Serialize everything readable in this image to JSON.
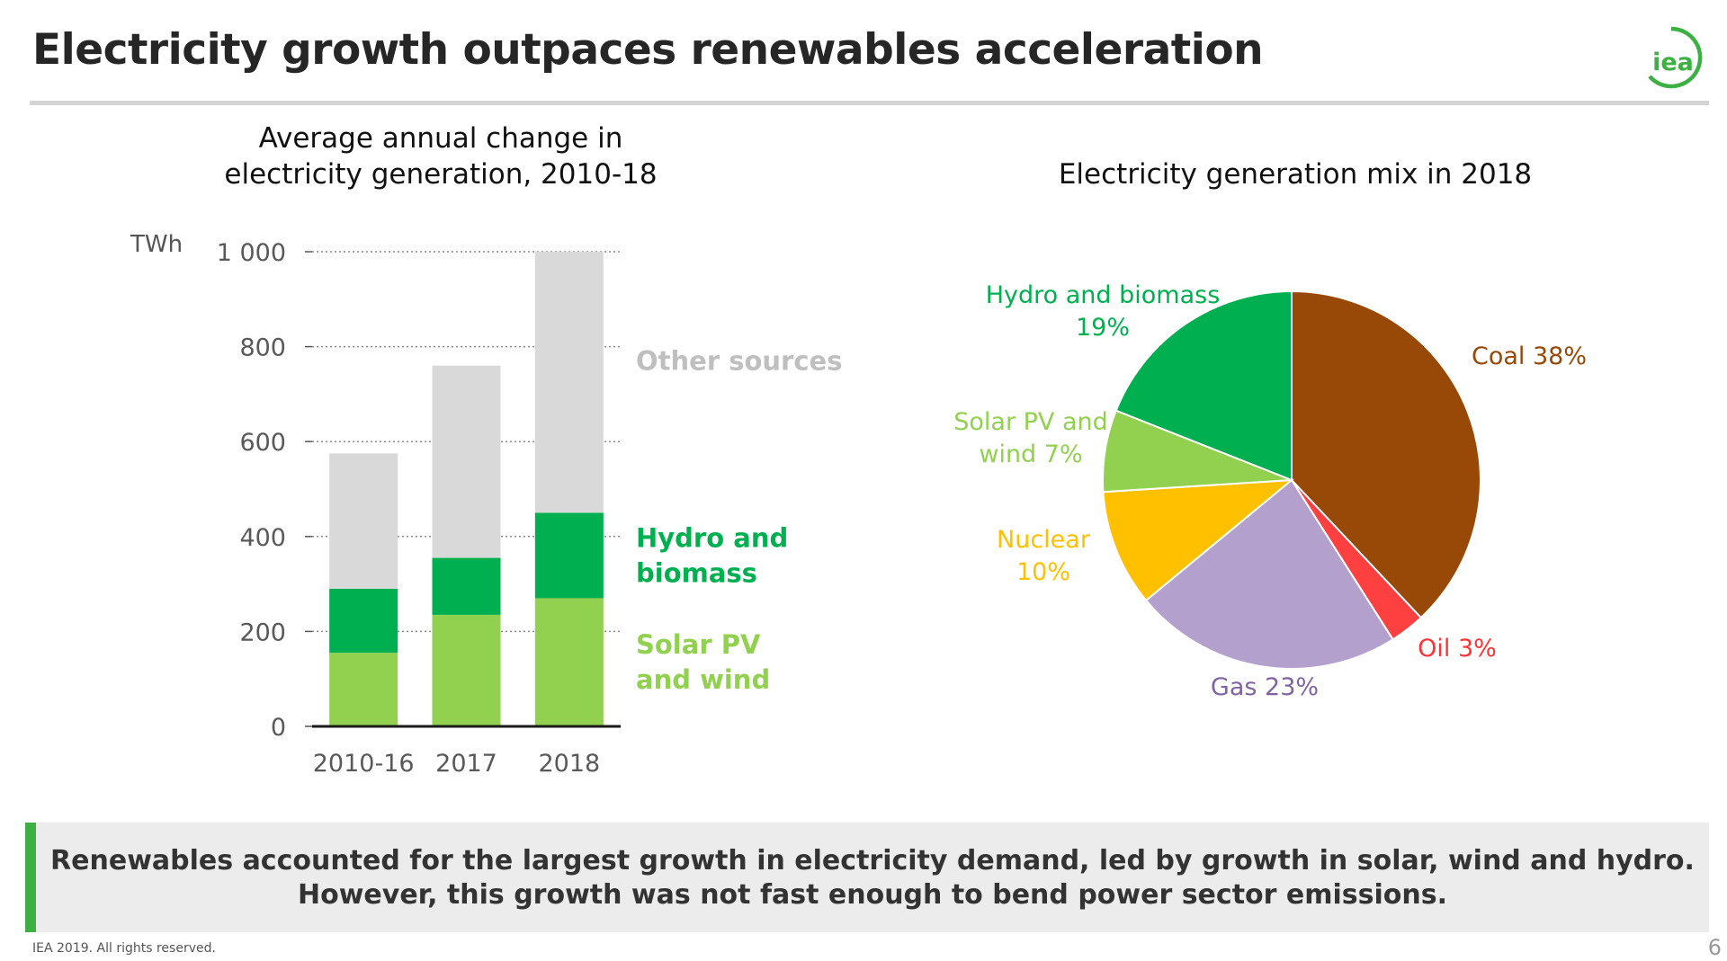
{
  "header": {
    "title": "Electricity growth outpaces renewables acceleration",
    "logo_text": "iea",
    "colors": {
      "logo": "#3cb043",
      "rule": "#d4d4d4"
    }
  },
  "callout": {
    "line1": "Renewables accounted for the largest growth in electricity demand, led by growth in solar, wind and hydro.",
    "line2": "However, this growth was not fast enough to bend power sector emissions."
  },
  "footer": {
    "copyright": "IEA 2019. All rights reserved.",
    "page_number": "6"
  },
  "chart_data": [
    {
      "type": "bar",
      "stacked": true,
      "title": "Average annual change in electricity generation, 2010-18",
      "title_lines": [
        "Average annual change in",
        "electricity generation, 2010-18"
      ],
      "ylabel": "TWh",
      "ylim": [
        0,
        1000
      ],
      "yticks": [
        0,
        200,
        400,
        600,
        800,
        1000
      ],
      "ytick_labels": [
        "0",
        "200",
        "400",
        "600",
        "800",
        "1 000"
      ],
      "grid": true,
      "categories": [
        "2010-16",
        "2017",
        "2018"
      ],
      "series": [
        {
          "name": "Solar PV and wind",
          "label_lines": [
            "Solar PV",
            "and wind"
          ],
          "color": "#92d050",
          "label_color": "#92d050",
          "values": [
            155,
            235,
            270
          ]
        },
        {
          "name": "Hydro and biomass",
          "label_lines": [
            "Hydro and",
            "biomass"
          ],
          "color": "#00b050",
          "label_color": "#00b050",
          "values": [
            135,
            120,
            180
          ]
        },
        {
          "name": "Other sources",
          "label_lines": [
            "Other sources"
          ],
          "color": "#d9d9d9",
          "label_color": "#bfbfbf",
          "values": [
            285,
            405,
            550
          ]
        }
      ]
    },
    {
      "type": "pie",
      "title": "Electricity generation mix in 2018",
      "unit": "%",
      "slices": [
        {
          "name": "Coal",
          "value": 38,
          "color": "#984807",
          "label_lines": [
            "Coal 38%"
          ],
          "label_color": "#984807"
        },
        {
          "name": "Oil",
          "value": 3,
          "color": "#ff4040",
          "label_lines": [
            "Oil 3%"
          ],
          "label_color": "#ff3333"
        },
        {
          "name": "Gas",
          "value": 23,
          "color": "#b4a0cc",
          "label_lines": [
            "Gas 23%"
          ],
          "label_color": "#8064a2"
        },
        {
          "name": "Nuclear",
          "value": 10,
          "color": "#ffc000",
          "label_lines": [
            "Nuclear",
            "10%"
          ],
          "label_color": "#ffc000"
        },
        {
          "name": "Solar PV and wind",
          "value": 7,
          "color": "#92d050",
          "label_lines": [
            "Solar PV and",
            "wind 7%"
          ],
          "label_color": "#92d050"
        },
        {
          "name": "Hydro and biomass",
          "value": 19,
          "color": "#00b050",
          "label_lines": [
            "Hydro and biomass",
            "19%"
          ],
          "label_color": "#00b050"
        }
      ]
    }
  ]
}
